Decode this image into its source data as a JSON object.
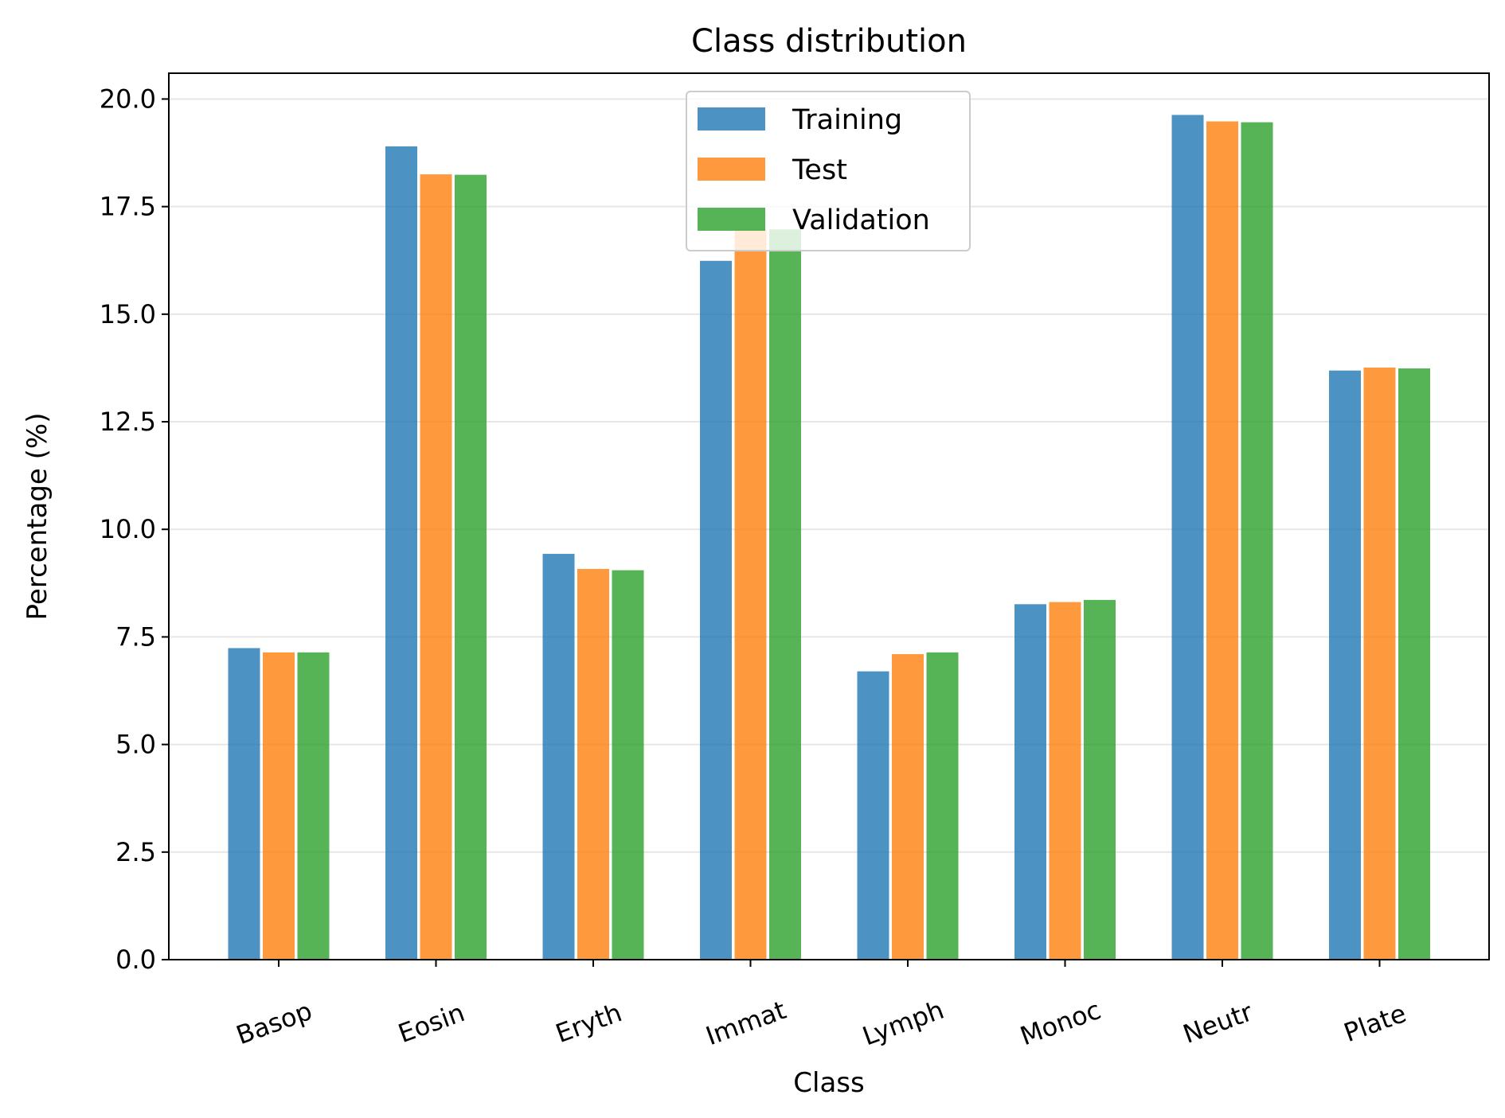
{
  "chart_data": {
    "type": "bar",
    "title": "Class distribution",
    "xlabel": "Class",
    "ylabel": "Percentage (%)",
    "categories": [
      "Basop",
      "Eosin",
      "Eryth",
      "Immat",
      "Lymph",
      "Monoc",
      "Neutr",
      "Plate"
    ],
    "series": [
      {
        "name": "Training",
        "color": "#1f77b4",
        "values": [
          7.24,
          18.9,
          9.43,
          16.24,
          6.7,
          8.26,
          19.63,
          13.69
        ]
      },
      {
        "name": "Test",
        "color": "#ff7f0e",
        "values": [
          7.14,
          18.25,
          9.08,
          16.97,
          7.1,
          8.31,
          19.48,
          13.76
        ]
      },
      {
        "name": "Validation",
        "color": "#2ca02c",
        "values": [
          7.14,
          18.24,
          9.05,
          16.97,
          7.14,
          8.36,
          19.46,
          13.74
        ]
      }
    ],
    "ylim": [
      0,
      20.6
    ],
    "yticks": [
      "0.0",
      "2.5",
      "5.0",
      "7.5",
      "10.0",
      "12.5",
      "15.0",
      "17.5",
      "20.0"
    ],
    "grid": "horizontal",
    "legend_position": "upper center"
  }
}
